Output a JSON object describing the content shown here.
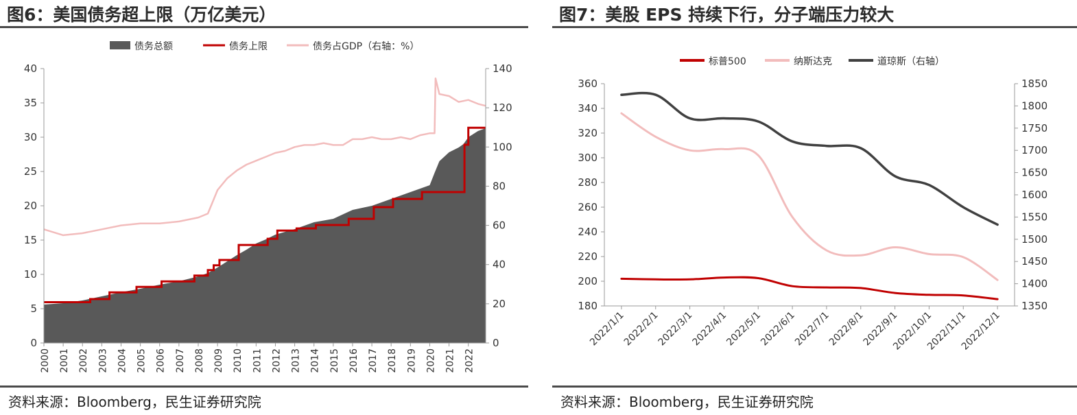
{
  "charts": [
    {
      "title": "图6：美国债务超上限（万亿美元）",
      "source": "资料来源：Bloomberg，民生证券研究院",
      "legend": [
        {
          "label": "债务总额",
          "color": "#595959",
          "kind": "area"
        },
        {
          "label": "债务上限",
          "color": "#c00000",
          "kind": "line"
        },
        {
          "label": "债务占GDP（右轴：%）",
          "color": "#f2bcbc",
          "kind": "line"
        }
      ],
      "y_left": {
        "min": 0,
        "max": 40,
        "ticks": [
          0,
          5,
          10,
          15,
          20,
          25,
          30,
          35,
          40
        ]
      },
      "y_right": {
        "min": 0,
        "max": 140,
        "ticks": [
          0,
          20,
          40,
          60,
          80,
          100,
          120,
          140
        ]
      },
      "x_labels": [
        "2000",
        "2001",
        "2002",
        "2003",
        "2004",
        "2005",
        "2006",
        "2007",
        "2008",
        "2009",
        "2010",
        "2011",
        "2012",
        "2013",
        "2014",
        "2015",
        "2016",
        "2017",
        "2018",
        "2019",
        "2020",
        "2021",
        "2022"
      ]
    },
    {
      "title": "图7：美股 EPS 持续下行，分子端压力较大",
      "source": "资料来源：Bloomberg，民生证券研究院",
      "legend": [
        {
          "label": "标普500",
          "color": "#c00000"
        },
        {
          "label": "纳斯达克",
          "color": "#f2bcbc"
        },
        {
          "label": "道琼斯（右轴）",
          "color": "#404040"
        }
      ],
      "y_left": {
        "min": 180,
        "max": 360,
        "ticks": [
          180,
          200,
          220,
          240,
          260,
          280,
          300,
          320,
          340,
          360
        ]
      },
      "y_right": {
        "min": 1350,
        "max": 1850,
        "ticks": [
          1350,
          1400,
          1450,
          1500,
          1550,
          1600,
          1650,
          1700,
          1750,
          1800,
          1850
        ]
      },
      "x_labels": [
        "2022/1/1",
        "2022/2/1",
        "2022/3/1",
        "2022/4/1",
        "2022/5/1",
        "2022/6/1",
        "2022/7/1",
        "2022/8/1",
        "2022/9/1",
        "2022/10/1",
        "2022/11/1",
        "2022/12/1"
      ]
    }
  ],
  "chart_data": [
    {
      "type": "area",
      "series": [
        {
          "name": "债务总额",
          "axis": "left",
          "x": [
            2000,
            2001,
            2002,
            2003,
            2004,
            2005,
            2006,
            2007,
            2008,
            2008.5,
            2009,
            2009.5,
            2010,
            2010.5,
            2011,
            2011.5,
            2012,
            2013,
            2014,
            2015,
            2016,
            2017,
            2018,
            2019,
            2020,
            2020.25,
            2020.5,
            2021,
            2021.5,
            2021.75,
            2022,
            2022.5,
            2022.9
          ],
          "y": [
            5.6,
            5.8,
            6.2,
            6.8,
            7.4,
            7.9,
            8.5,
            9.0,
            9.7,
            10.2,
            11.0,
            11.9,
            12.8,
            13.6,
            14.5,
            15.1,
            15.8,
            16.6,
            17.6,
            18.1,
            19.4,
            20.0,
            21.0,
            22.0,
            23.0,
            24.8,
            26.5,
            27.8,
            28.5,
            29.0,
            30.0,
            30.9,
            31.3
          ]
        },
        {
          "name": "债务上限",
          "axis": "left",
          "x": [
            2000,
            2002.4,
            2003.4,
            2004.8,
            2006.1,
            2007.8,
            2008.5,
            2008.8,
            2009.1,
            2010.1,
            2011.6,
            2012.1,
            2013.1,
            2014.1,
            2015.8,
            2017.1,
            2018.1,
            2019.6,
            2021.8,
            2022.0,
            2022.9
          ],
          "y": [
            5.95,
            6.4,
            7.38,
            8.18,
            8.97,
            9.82,
            10.62,
            11.32,
            12.1,
            14.29,
            15.19,
            16.39,
            16.7,
            17.2,
            18.1,
            19.8,
            21.0,
            22.0,
            28.9,
            31.38,
            31.38
          ]
        },
        {
          "name": "债务占GDP（右轴：%）",
          "axis": "right",
          "x": [
            2000,
            2001,
            2002,
            2003,
            2004,
            2005,
            2006,
            2007,
            2008,
            2008.5,
            2009,
            2009.5,
            2010,
            2010.5,
            2011,
            2011.5,
            2012,
            2012.5,
            2013,
            2013.5,
            2014,
            2014.5,
            2015,
            2015.5,
            2016,
            2016.5,
            2017,
            2017.5,
            2018,
            2018.5,
            2019,
            2019.5,
            2020,
            2020.25,
            2020.3,
            2020.5,
            2021,
            2021.5,
            2022,
            2022.5,
            2022.9
          ],
          "y": [
            58,
            55,
            56,
            58,
            60,
            61,
            61,
            62,
            64,
            66,
            78,
            84,
            88,
            91,
            93,
            95,
            97,
            98,
            100,
            101,
            101,
            102,
            101,
            101,
            104,
            104,
            105,
            104,
            104,
            105,
            104,
            106,
            107,
            107,
            135,
            127,
            126,
            123,
            124,
            122,
            121
          ]
        }
      ]
    },
    {
      "type": "line",
      "categories": [
        "2022/1/1",
        "2022/2/1",
        "2022/3/1",
        "2022/4/1",
        "2022/5/1",
        "2022/6/1",
        "2022/7/1",
        "2022/8/1",
        "2022/9/1",
        "2022/10/1",
        "2022/11/1",
        "2022/12/1"
      ],
      "series": [
        {
          "name": "标普500",
          "axis": "left",
          "values": [
            202,
            201.5,
            201.5,
            203,
            202.5,
            196,
            195,
            194.5,
            190.5,
            189,
            188.5,
            185.5
          ]
        },
        {
          "name": "纳斯达克",
          "axis": "left",
          "values": [
            336,
            317,
            306,
            307,
            302,
            252,
            225,
            221,
            227.5,
            222,
            219.5,
            201
          ]
        },
        {
          "name": "道琼斯（右轴）",
          "axis": "right",
          "values": [
            1825,
            1825,
            1772,
            1772,
            1765,
            1720,
            1710,
            1705,
            1642,
            1622,
            1572,
            1533
          ]
        }
      ]
    }
  ]
}
